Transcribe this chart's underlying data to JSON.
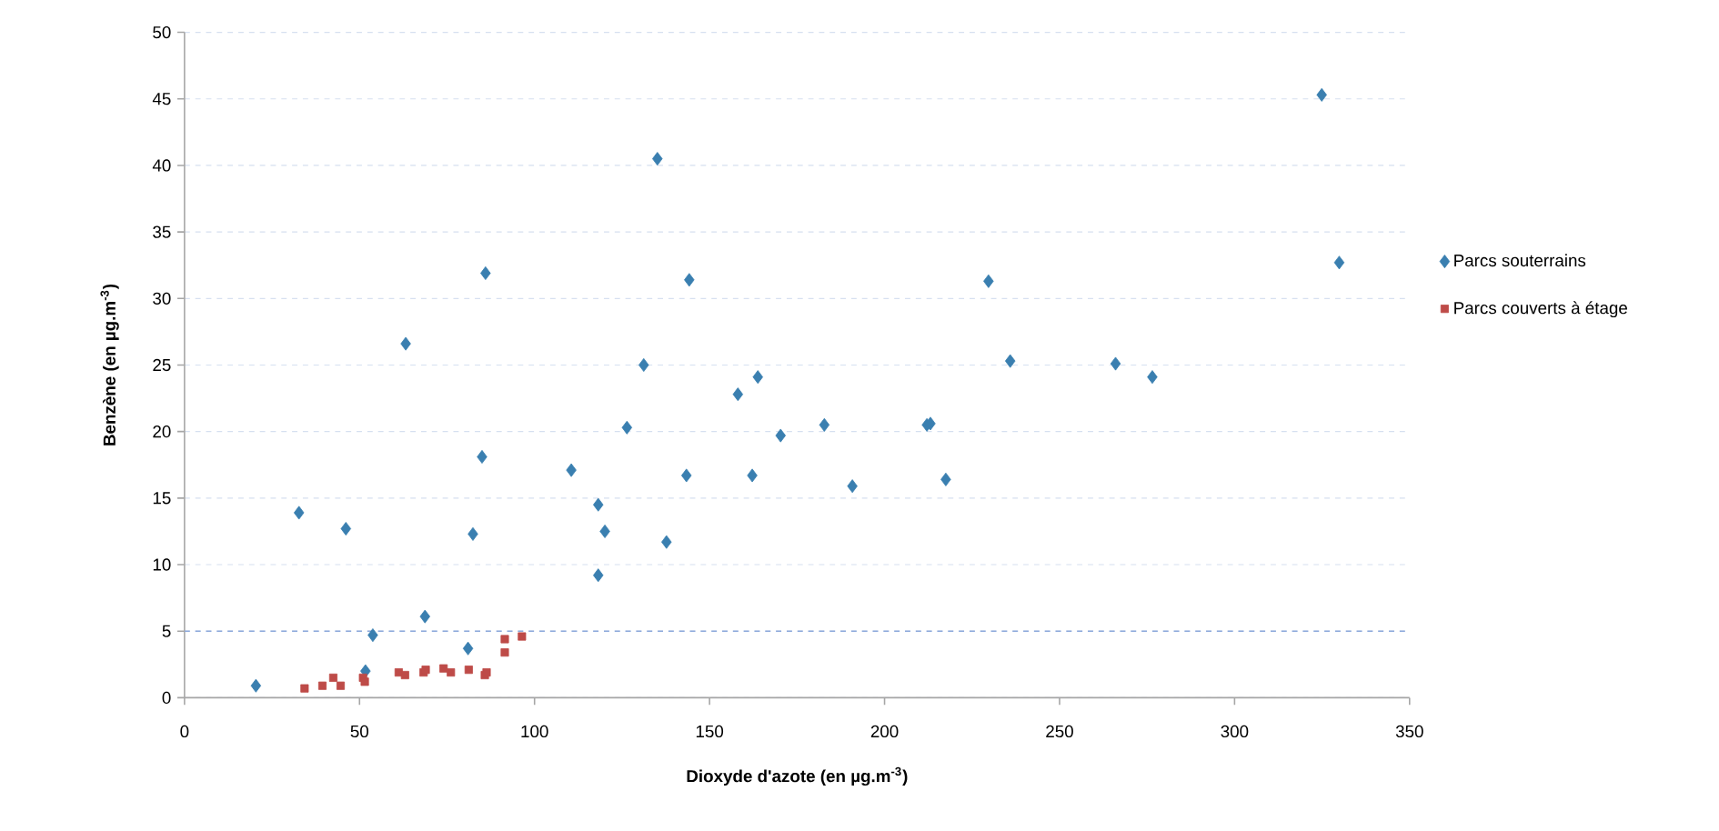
{
  "chart_data": {
    "type": "scatter",
    "xlabel": "Dioxyde d'azote (en µg.m$^{-3}$)",
    "ylabel": "Benzène (en µg.m$^{-3}$)",
    "xlim": [
      0,
      350
    ],
    "xticks": [
      0,
      50,
      100,
      150,
      200,
      250,
      300,
      350
    ],
    "ylim": [
      0,
      50
    ],
    "yticks": [
      0,
      5,
      10,
      15,
      20,
      25,
      30,
      35,
      40,
      45,
      50
    ],
    "grid": "y",
    "legend": "right",
    "ref_lines": [
      {
        "axis": "y",
        "value": 5,
        "color": "#8eaadc",
        "line_style": "dashed"
      }
    ],
    "series": [
      {
        "name": "Parcs souterrains",
        "color": "#3a7fb0",
        "marker": "diamond",
        "x": [
          20.4,
          32.7,
          46.1,
          51.7,
          53.8,
          63.2,
          68.7,
          81.0,
          82.4,
          85.0,
          86.0,
          110.5,
          118.2,
          118.2,
          120.1,
          126.4,
          131.2,
          135.1,
          137.7,
          143.4,
          144.2,
          158.1,
          163.8,
          162.2,
          170.3,
          182.8,
          190.8,
          212.1,
          213.1,
          217.5,
          229.7,
          235.9,
          266.0,
          276.5,
          324.9,
          329.9
        ],
        "values": [
          0.9,
          13.9,
          12.7,
          2.0,
          4.7,
          26.6,
          6.1,
          3.7,
          12.3,
          18.1,
          31.9,
          17.1,
          14.5,
          9.2,
          12.5,
          20.3,
          25.0,
          40.5,
          11.7,
          16.7,
          31.4,
          22.8,
          24.1,
          16.7,
          19.7,
          20.5,
          15.9,
          20.5,
          20.6,
          16.4,
          31.3,
          25.3,
          25.1,
          24.1,
          45.3,
          32.7
        ]
      },
      {
        "name": "Parcs couverts  à étage",
        "color": "#be4b48",
        "marker": "square",
        "x": [
          34.3,
          39.4,
          42.5,
          44.6,
          51.0,
          51.5,
          61.2,
          63.0,
          68.3,
          68.9,
          74.0,
          76.1,
          81.2,
          85.8,
          86.3,
          91.5,
          91.5,
          96.4
        ],
        "values": [
          0.7,
          0.9,
          1.5,
          0.9,
          1.5,
          1.2,
          1.9,
          1.7,
          1.9,
          2.1,
          2.2,
          1.9,
          2.1,
          1.7,
          1.9,
          3.4,
          4.4,
          4.6
        ]
      }
    ]
  }
}
